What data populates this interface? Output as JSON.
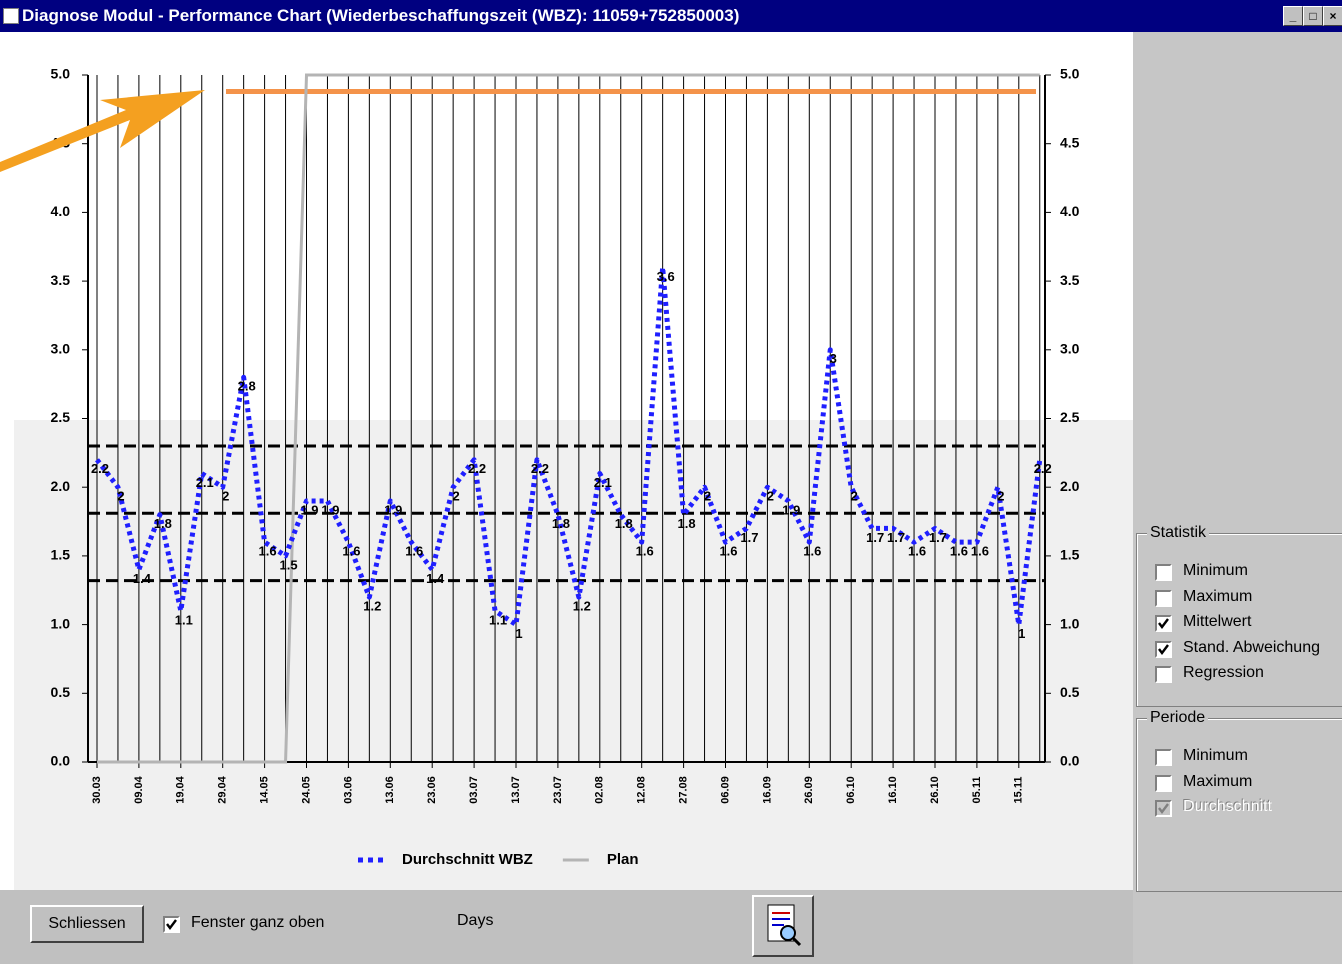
{
  "window": {
    "title": "Diagnose Modul - Performance Chart  (Wiederbeschaffungszeit (WBZ): 11059+752850003)"
  },
  "chart_data": {
    "type": "line",
    "categories": [
      "30.03",
      null,
      "09.04",
      null,
      "19.04",
      null,
      "29.04",
      null,
      "14.05",
      null,
      "24.05",
      null,
      "03.06",
      null,
      "13.06",
      null,
      "23.06",
      null,
      "03.07",
      null,
      "13.07",
      null,
      "23.07",
      null,
      "02.08",
      null,
      "12.08",
      null,
      "27.08",
      null,
      "06.09",
      null,
      "16.09",
      null,
      "26.09",
      null,
      "06.10",
      null,
      "16.10",
      null,
      "26.10",
      null,
      "05.11",
      null,
      "15.11",
      null
    ],
    "series": [
      {
        "name": "Durchschnitt WBZ",
        "color": "#1f1fff",
        "line_style": "dotted",
        "data_labels": true,
        "values": [
          2.2,
          2,
          1.4,
          1.8,
          1.1,
          2.1,
          2,
          2.8,
          1.6,
          1.5,
          1.9,
          1.9,
          1.6,
          1.2,
          1.9,
          1.6,
          1.4,
          2,
          2.2,
          1.1,
          1,
          2.2,
          1.8,
          1.2,
          2.1,
          1.8,
          1.6,
          3.6,
          1.8,
          2,
          1.6,
          1.7,
          2,
          1.9,
          1.6,
          3,
          2,
          1.7,
          1.7,
          1.6,
          1.7,
          1.6,
          1.6,
          2,
          1,
          2.2
        ]
      },
      {
        "name": "Plan",
        "color": "#b4b4b4",
        "line_style": "solid",
        "data_labels": false,
        "values": [
          0,
          0,
          0,
          0,
          0,
          0,
          0,
          0,
          0,
          0,
          5,
          5,
          5,
          5,
          5,
          5,
          5,
          5,
          5,
          5,
          5,
          5,
          5,
          5,
          5,
          5,
          5,
          5,
          5,
          5,
          5,
          5,
          5,
          5,
          5,
          5,
          5,
          5,
          5,
          5,
          5,
          5,
          5,
          5,
          5,
          5
        ]
      }
    ],
    "reference_lines": [
      2.3,
      1.81,
      1.32
    ],
    "reference_color": "#000000",
    "highlight": {
      "value": 4.88,
      "color": "#f4934a"
    },
    "ylim": [
      0,
      5
    ],
    "yticks": [
      {
        "value": 0,
        "label": "0.0"
      },
      0.5,
      {
        "value": 1,
        "label": "1.0"
      },
      1.5,
      {
        "value": 2,
        "label": "2.0"
      },
      2.5,
      {
        "value": 3,
        "label": "3.0"
      },
      3.5,
      {
        "value": 4,
        "label": "4.0"
      },
      4.5,
      {
        "value": 5,
        "label": "5.0"
      }
    ],
    "x_label": "Days"
  },
  "statistik": {
    "title": "Statistik",
    "options": [
      {
        "label": "Minimum",
        "checked": false
      },
      {
        "label": "Maximum",
        "checked": false
      },
      {
        "label": "Mittelwert",
        "checked": true
      },
      {
        "label": "Stand. Abweichung",
        "checked": true
      },
      {
        "label": "Regression",
        "checked": false
      }
    ]
  },
  "periode": {
    "title": "Periode",
    "options": [
      {
        "label": "Minimum",
        "checked": false
      },
      {
        "label": "Maximum",
        "checked": false
      },
      {
        "label": "Durchschnitt",
        "checked": true,
        "disabled": true
      }
    ]
  },
  "footer": {
    "close_button": "Schliessen",
    "checkbox": {
      "label": "Fenster ganz oben",
      "checked": true
    }
  }
}
